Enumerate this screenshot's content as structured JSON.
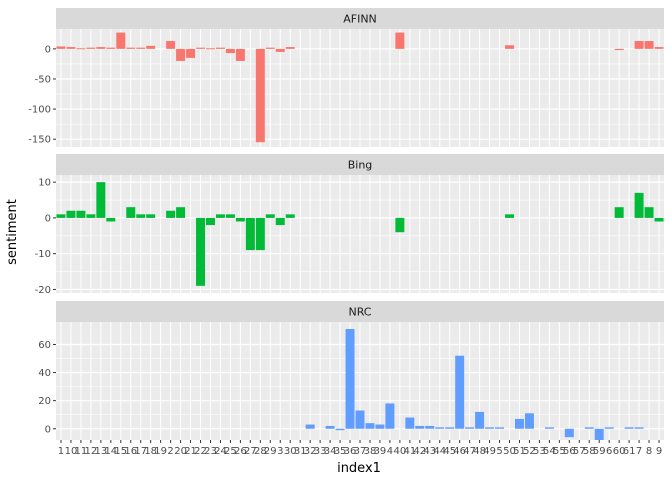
{
  "chart_data": {
    "type": "bar",
    "xlabel": "index1",
    "ylabel": "sentiment",
    "x_ticks": [
      "1",
      "10",
      "11",
      "12",
      "13",
      "14",
      "15",
      "16",
      "17",
      "18",
      "19",
      "2",
      "20",
      "21",
      "22",
      "23",
      "24",
      "25",
      "26",
      "27",
      "28",
      "29",
      "3",
      "30",
      "31",
      "32",
      "33",
      "34",
      "35",
      "36",
      "37",
      "38",
      "39",
      "4",
      "40",
      "41",
      "42",
      "43",
      "44",
      "45",
      "46",
      "47",
      "48",
      "49",
      "5",
      "50",
      "51",
      "52",
      "53",
      "54",
      "55",
      "56",
      "57",
      "58",
      "59",
      "6",
      "60",
      "61",
      "7",
      "8",
      "9"
    ],
    "colors": {
      "AFINN": "#f8766d",
      "Bing": "#00ba38",
      "NRC": "#619cff"
    },
    "panels": [
      {
        "name": "AFINN",
        "ylim": [
          -163,
          33
        ],
        "yticks": [
          0,
          -50,
          -100,
          -150
        ],
        "values": [
          4,
          3,
          1,
          2,
          3,
          2,
          27,
          2,
          2,
          5,
          0,
          13,
          -20,
          -15,
          2,
          1,
          2,
          -7,
          -20,
          0,
          -155,
          2,
          -5,
          3,
          0,
          0,
          0,
          0,
          0,
          0,
          0,
          0,
          0,
          0,
          27,
          0,
          0,
          0,
          0,
          0,
          0,
          0,
          0,
          0,
          0,
          6,
          0,
          0,
          0,
          0,
          0,
          0,
          0,
          0,
          0,
          0,
          -2,
          0,
          13,
          13,
          3
        ]
      },
      {
        "name": "Bing",
        "ylim": [
          -21,
          12
        ],
        "yticks": [
          10,
          0,
          -10,
          -20
        ],
        "values": [
          1,
          2,
          2,
          1,
          10,
          -1,
          0,
          3,
          1,
          1,
          0,
          2,
          3,
          0,
          -19,
          -2,
          1,
          1,
          -1,
          -9,
          -9,
          1,
          -2,
          1,
          0,
          0,
          0,
          0,
          0,
          0,
          0,
          0,
          0,
          0,
          -4,
          0,
          0,
          0,
          0,
          0,
          0,
          0,
          0,
          0,
          0,
          1,
          0,
          0,
          0,
          0,
          0,
          0,
          0,
          0,
          0,
          0,
          3,
          0,
          7,
          3,
          -1
        ]
      },
      {
        "name": "NRC",
        "ylim": [
          -8,
          76
        ],
        "yticks": [
          60,
          40,
          20,
          0
        ],
        "values": [
          0,
          0,
          0,
          0,
          0,
          0,
          0,
          0,
          0,
          0,
          0,
          0,
          0,
          0,
          0,
          0,
          0,
          0,
          0,
          0,
          0,
          0,
          0,
          0,
          0,
          3,
          0,
          2,
          -1,
          71,
          13,
          4,
          3,
          18,
          0,
          8,
          2,
          2,
          1,
          1,
          52,
          1,
          12,
          1,
          1,
          0,
          7,
          11,
          0,
          1,
          0,
          -6,
          0,
          1,
          -8,
          1,
          0,
          1,
          1,
          0,
          0
        ]
      }
    ]
  }
}
